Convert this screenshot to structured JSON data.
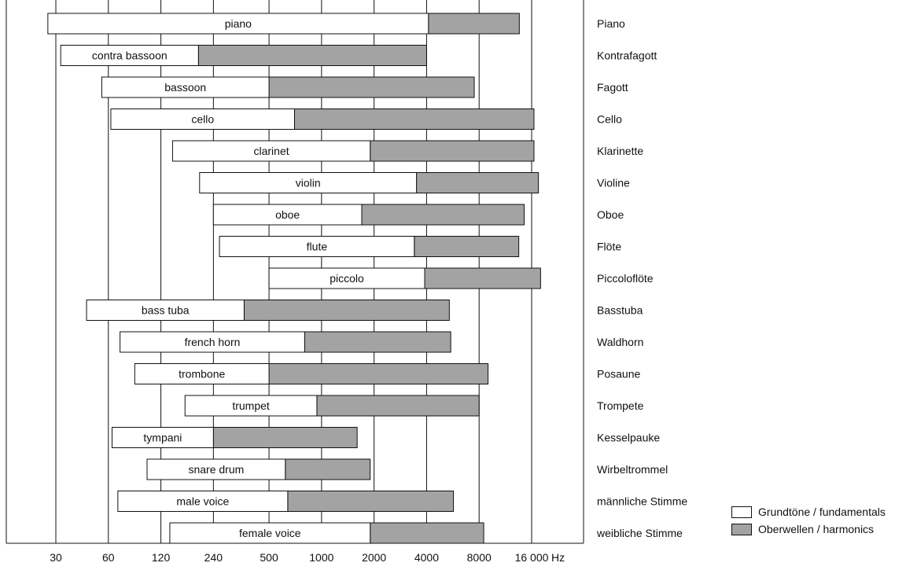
{
  "chart_data": {
    "type": "bar",
    "orientation": "horizontal",
    "x_scale": "log2",
    "x_unit": "Hz",
    "x_ticks": [
      {
        "value": 30,
        "label": "30"
      },
      {
        "value": 60,
        "label": "60"
      },
      {
        "value": 120,
        "label": "120"
      },
      {
        "value": 240,
        "label": "240"
      },
      {
        "value": 500,
        "label": "500"
      },
      {
        "value": 1000,
        "label": "1000"
      },
      {
        "value": 2000,
        "label": "2000"
      },
      {
        "value": 4000,
        "label": "4000"
      },
      {
        "value": 8000,
        "label": "8000"
      },
      {
        "value": 16000,
        "label": "16 000"
      }
    ],
    "series": [
      {
        "name": "Grundtöne / fundamentals",
        "color": "#ffffff"
      },
      {
        "name": "Oberwellen / harmonics",
        "color": "#a3a3a3"
      }
    ],
    "instruments": [
      {
        "label_en": "piano",
        "label_de": "Piano",
        "fundamental": [
          27,
          4100
        ],
        "harmonics_to": 13600
      },
      {
        "label_en": "contra bassoon",
        "label_de": "Kontrafagott",
        "fundamental": [
          32,
          197
        ],
        "harmonics_to": 4000
      },
      {
        "label_en": "bassoon",
        "label_de": "Fagott",
        "fundamental": [
          55,
          500
        ],
        "harmonics_to": 7500
      },
      {
        "label_en": "cello",
        "label_de": "Cello",
        "fundamental": [
          62,
          700
        ],
        "harmonics_to": 16500
      },
      {
        "label_en": "clarinet",
        "label_de": "Klarinette",
        "fundamental": [
          140,
          1900
        ],
        "harmonics_to": 16500
      },
      {
        "label_en": "violin",
        "label_de": "Violine",
        "fundamental": [
          200,
          3500
        ],
        "harmonics_to": 17500
      },
      {
        "label_en": "oboe",
        "label_de": "Oboe",
        "fundamental": [
          240,
          1700
        ],
        "harmonics_to": 14500
      },
      {
        "label_en": "flute",
        "label_de": "Flöte",
        "fundamental": [
          260,
          3400
        ],
        "harmonics_to": 13500
      },
      {
        "label_en": "piccolo",
        "label_de": "Piccoloflöte",
        "fundamental": [
          500,
          3900
        ],
        "harmonics_to": 18000
      },
      {
        "label_en": "bass tuba",
        "label_de": "Basstuba",
        "fundamental": [
          45,
          360
        ],
        "harmonics_to": 5400
      },
      {
        "label_en": "french horn",
        "label_de": "Waldhorn",
        "fundamental": [
          70,
          800
        ],
        "harmonics_to": 5500
      },
      {
        "label_en": "trombone",
        "label_de": "Posaune",
        "fundamental": [
          85,
          500
        ],
        "harmonics_to": 9000
      },
      {
        "label_en": "trumpet",
        "label_de": "Trompete",
        "fundamental": [
          165,
          940
        ],
        "harmonics_to": 8000
      },
      {
        "label_en": "tympani",
        "label_de": "Kesselpauke",
        "fundamental": [
          63,
          240
        ],
        "harmonics_to": 1600
      },
      {
        "label_en": "snare drum",
        "label_de": "Wirbeltrommel",
        "fundamental": [
          100,
          620
        ],
        "harmonics_to": 1900
      },
      {
        "label_en": "male voice",
        "label_de": "männliche Stimme",
        "fundamental": [
          68,
          640
        ],
        "harmonics_to": 5700
      },
      {
        "label_en": "female voice",
        "label_de": "weibliche Stimme",
        "fundamental": [
          135,
          1900
        ],
        "harmonics_to": 8500
      }
    ]
  },
  "legend": {
    "fundamentals": "Grundtöne / fundamentals",
    "harmonics": "Oberwellen / harmonics"
  },
  "x_unit_label": "Hz"
}
